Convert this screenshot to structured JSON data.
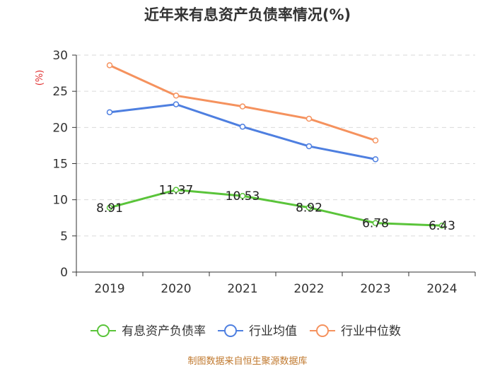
{
  "chart_data": {
    "type": "line",
    "title": "近年来有息资产负债率情况(%)",
    "ylabel": "(%)",
    "xlabel": "",
    "categories": [
      "2019",
      "2020",
      "2021",
      "2022",
      "2023",
      "2024"
    ],
    "ylim": [
      0,
      30
    ],
    "yticks": [
      0,
      5,
      10,
      15,
      20,
      25,
      30
    ],
    "grid": true,
    "legend_position": "bottom",
    "series": [
      {
        "name": "有息资产负债率",
        "color": "#5ac43a",
        "values": [
          8.91,
          11.37,
          10.53,
          8.92,
          6.78,
          6.43
        ],
        "labels": [
          "8.91",
          "11.37",
          "10.53",
          "8.92",
          "6.78",
          "6.43"
        ]
      },
      {
        "name": "行业均值",
        "color": "#4e7fe0",
        "values": [
          22.1,
          23.2,
          20.1,
          17.4,
          15.6,
          null
        ],
        "labels": []
      },
      {
        "name": "行业中位数",
        "color": "#f5925e",
        "values": [
          28.6,
          24.4,
          22.9,
          21.2,
          18.2,
          null
        ],
        "labels": []
      }
    ],
    "source": "制图数据来自恒生聚源数据库"
  }
}
